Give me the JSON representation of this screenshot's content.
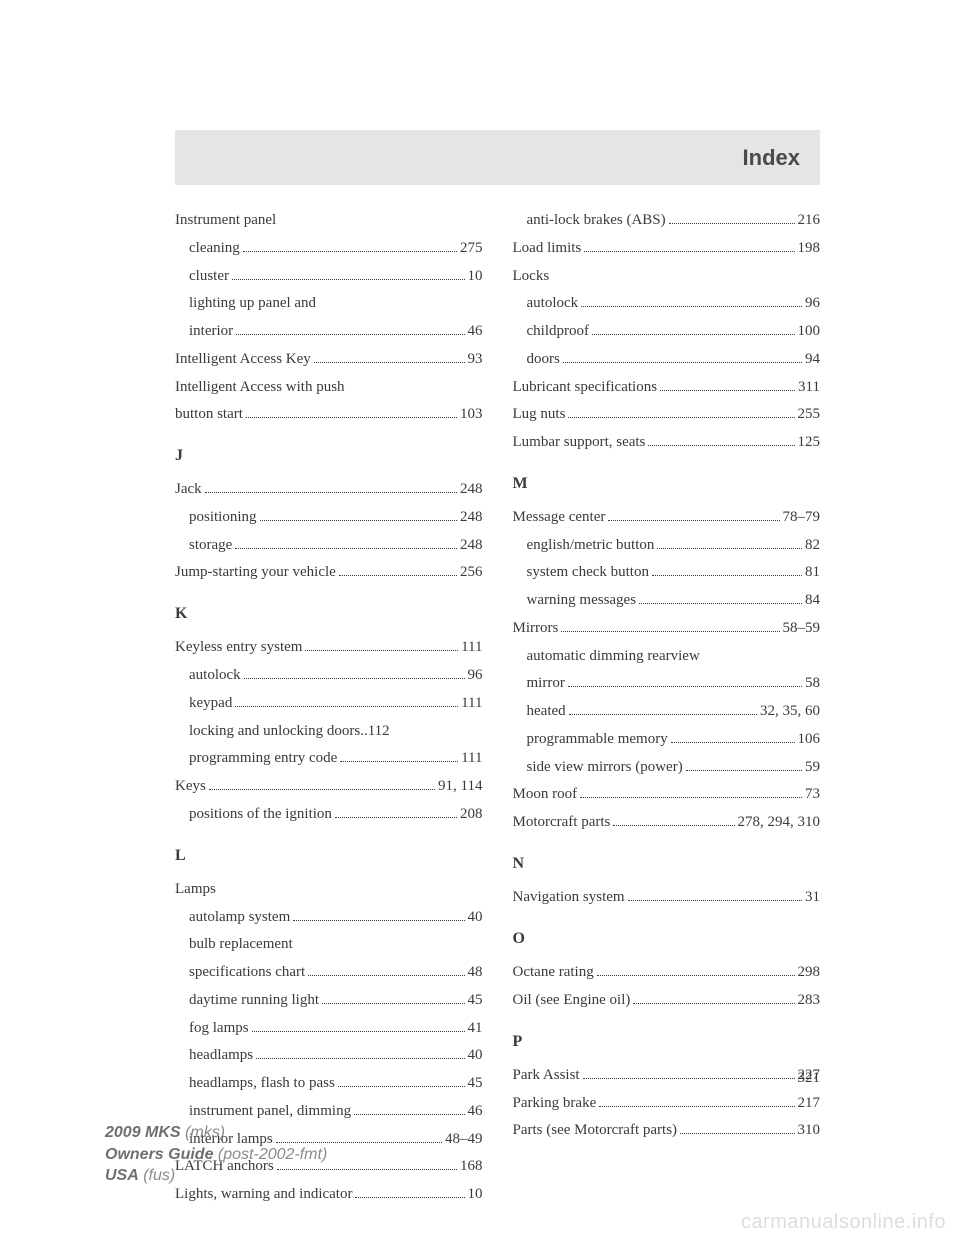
{
  "header": {
    "title": "Index"
  },
  "page_number": "321",
  "footer": {
    "line1a": "2009 MKS",
    "line1b": " (mks)",
    "line2a": "Owners Guide",
    "line2b": " (post-2002-fmt)",
    "line3a": "USA",
    "line3b": " (fus)"
  },
  "watermark": "carmanualsonline.info",
  "left": [
    {
      "type": "entry",
      "label": "Instrument panel",
      "page": ""
    },
    {
      "type": "sub",
      "label": "cleaning",
      "page": "275"
    },
    {
      "type": "sub",
      "label": "cluster",
      "page": "10"
    },
    {
      "type": "sub",
      "label": "lighting up panel and",
      "page": ""
    },
    {
      "type": "sub",
      "label": "interior",
      "page": "46"
    },
    {
      "type": "entry",
      "label": "Intelligent Access Key",
      "page": "93"
    },
    {
      "type": "entry",
      "label": "Intelligent Access with push",
      "page": ""
    },
    {
      "type": "entry",
      "label": "button start",
      "page": "103"
    },
    {
      "type": "letter",
      "label": "J"
    },
    {
      "type": "entry",
      "label": "Jack",
      "page": "248"
    },
    {
      "type": "sub",
      "label": "positioning",
      "page": "248"
    },
    {
      "type": "sub",
      "label": "storage",
      "page": "248"
    },
    {
      "type": "entry",
      "label": "Jump-starting your vehicle",
      "page": "256"
    },
    {
      "type": "letter",
      "label": "K"
    },
    {
      "type": "entry",
      "label": "Keyless entry system",
      "page": "111"
    },
    {
      "type": "sub",
      "label": "autolock",
      "page": "96"
    },
    {
      "type": "sub",
      "label": "keypad",
      "page": "111"
    },
    {
      "type": "sub",
      "label": "locking and unlocking doors",
      "page": "112",
      "nodots": true
    },
    {
      "type": "sub",
      "label": "programming entry code",
      "page": "111"
    },
    {
      "type": "entry",
      "label": "Keys",
      "page": "91, 114"
    },
    {
      "type": "sub",
      "label": "positions of the ignition",
      "page": "208"
    },
    {
      "type": "letter",
      "label": "L"
    },
    {
      "type": "entry",
      "label": "Lamps",
      "page": ""
    },
    {
      "type": "sub",
      "label": "autolamp system",
      "page": "40"
    },
    {
      "type": "sub",
      "label": "bulb replacement",
      "page": ""
    },
    {
      "type": "sub",
      "label": "specifications chart",
      "page": "48"
    },
    {
      "type": "sub",
      "label": "daytime running light",
      "page": "45"
    },
    {
      "type": "sub",
      "label": "fog lamps",
      "page": "41"
    },
    {
      "type": "sub",
      "label": "headlamps",
      "page": "40"
    },
    {
      "type": "sub",
      "label": "headlamps, flash to pass",
      "page": "45"
    },
    {
      "type": "sub",
      "label": "instrument panel, dimming",
      "page": "46"
    },
    {
      "type": "sub",
      "label": "interior lamps",
      "page": "48–49"
    },
    {
      "type": "entry",
      "label": "LATCH anchors",
      "page": "168"
    },
    {
      "type": "entry",
      "label": "Lights, warning and indicator",
      "page": "10"
    }
  ],
  "right": [
    {
      "type": "sub",
      "label": "anti-lock brakes (ABS)",
      "page": "216"
    },
    {
      "type": "entry",
      "label": "Load limits",
      "page": "198"
    },
    {
      "type": "entry",
      "label": "Locks",
      "page": ""
    },
    {
      "type": "sub",
      "label": "autolock",
      "page": "96"
    },
    {
      "type": "sub",
      "label": "childproof",
      "page": "100"
    },
    {
      "type": "sub",
      "label": "doors",
      "page": "94"
    },
    {
      "type": "entry",
      "label": "Lubricant specifications",
      "page": "311"
    },
    {
      "type": "entry",
      "label": "Lug nuts",
      "page": "255"
    },
    {
      "type": "entry",
      "label": "Lumbar support, seats",
      "page": "125"
    },
    {
      "type": "letter",
      "label": "M"
    },
    {
      "type": "entry",
      "label": "Message center",
      "page": "78–79"
    },
    {
      "type": "sub",
      "label": "english/metric button",
      "page": "82"
    },
    {
      "type": "sub",
      "label": "system check button",
      "page": "81"
    },
    {
      "type": "sub",
      "label": "warning messages",
      "page": "84"
    },
    {
      "type": "entry",
      "label": "Mirrors",
      "page": "58–59"
    },
    {
      "type": "sub",
      "label": "automatic dimming rearview",
      "page": ""
    },
    {
      "type": "sub",
      "label": "mirror",
      "page": "58"
    },
    {
      "type": "sub",
      "label": "heated",
      "page": "32, 35, 60"
    },
    {
      "type": "sub",
      "label": "programmable memory",
      "page": "106"
    },
    {
      "type": "sub",
      "label": "side view mirrors (power)",
      "page": "59"
    },
    {
      "type": "entry",
      "label": "Moon roof",
      "page": "73"
    },
    {
      "type": "entry",
      "label": "Motorcraft parts",
      "page": "278, 294, 310"
    },
    {
      "type": "letter",
      "label": "N"
    },
    {
      "type": "entry",
      "label": "Navigation system",
      "page": "31"
    },
    {
      "type": "letter",
      "label": "O"
    },
    {
      "type": "entry",
      "label": "Octane rating",
      "page": "298"
    },
    {
      "type": "entry",
      "label": "Oil (see Engine oil)",
      "page": "283"
    },
    {
      "type": "letter",
      "label": "P"
    },
    {
      "type": "entry",
      "label": "Park Assist",
      "page": "227"
    },
    {
      "type": "entry",
      "label": "Parking brake",
      "page": "217"
    },
    {
      "type": "entry",
      "label": "Parts (see Motorcraft parts)",
      "page": "310"
    }
  ]
}
